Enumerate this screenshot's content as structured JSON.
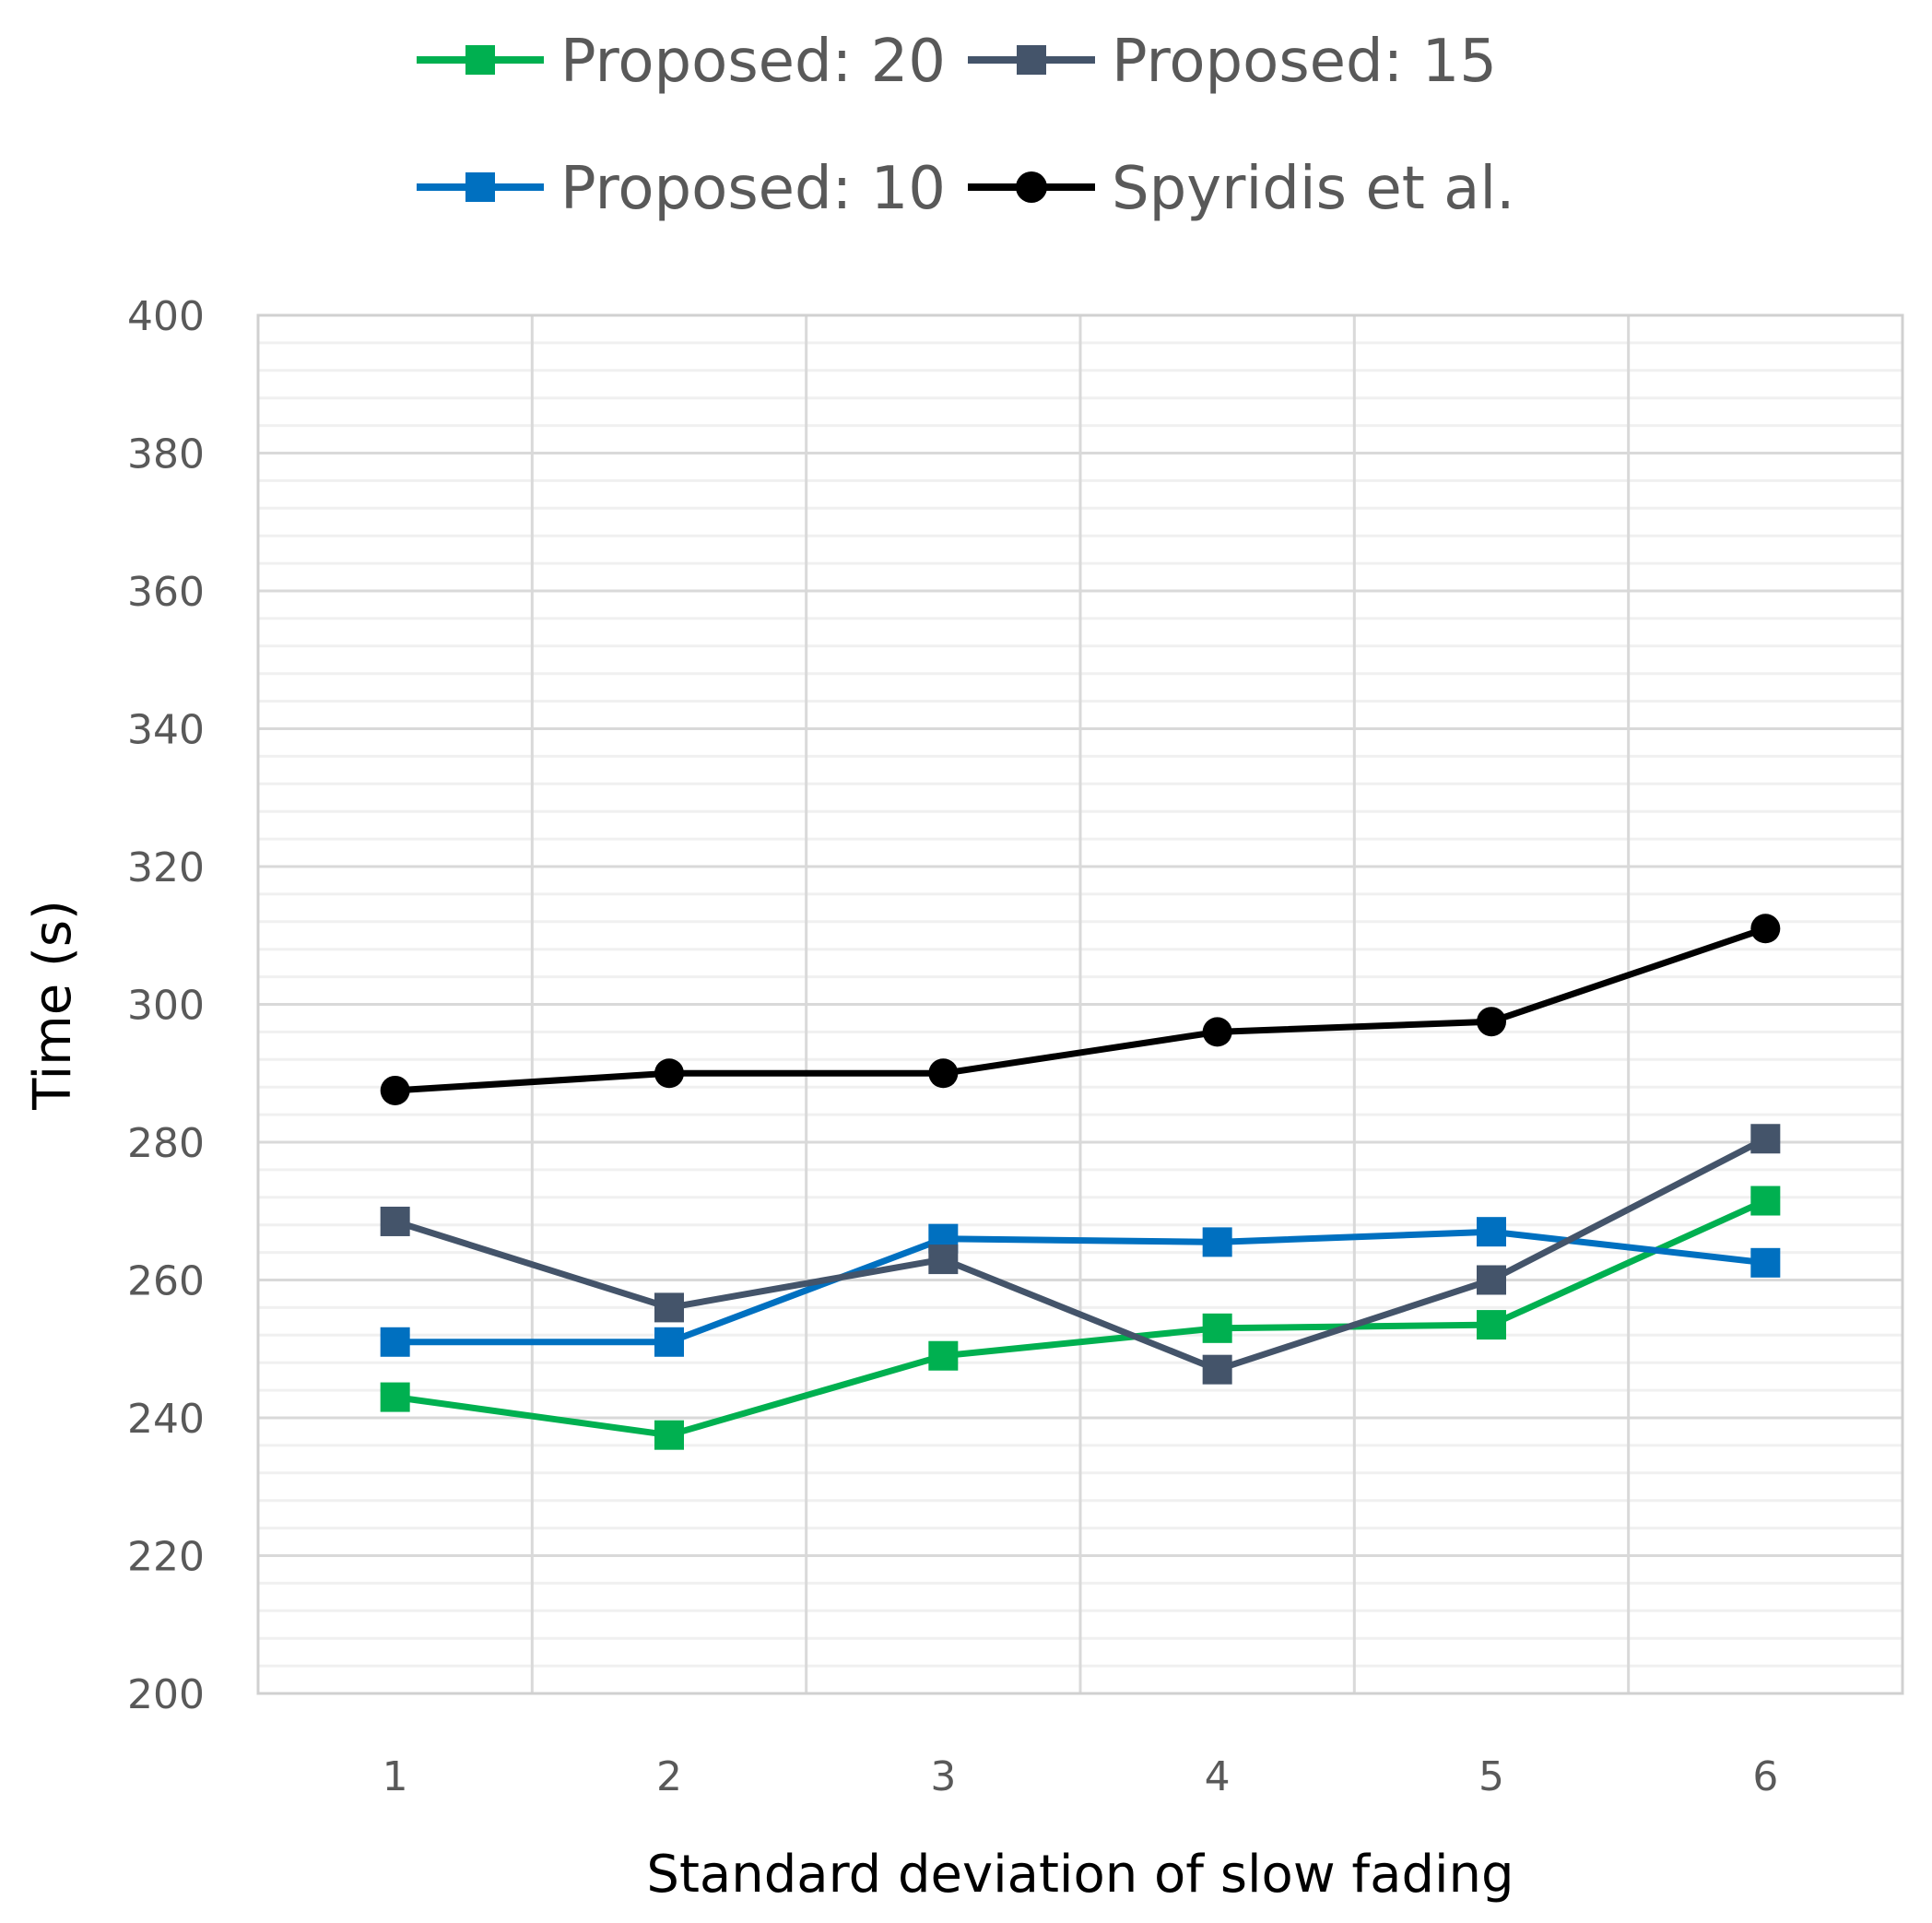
{
  "chart_data": {
    "type": "line",
    "title": "",
    "xlabel": "Standard deviation of slow fading",
    "ylabel": "Time (s)",
    "x": [
      1,
      2,
      3,
      4,
      5,
      6
    ],
    "x_tick_labels": [
      "1",
      "2",
      "3",
      "4",
      "5",
      "6"
    ],
    "ylim": [
      200,
      400
    ],
    "y_major_step": 20,
    "y_minor_step": 4,
    "y_tick_labels": [
      "200",
      "220",
      "240",
      "260",
      "280",
      "300",
      "320",
      "340",
      "360",
      "380",
      "400"
    ],
    "grid": true,
    "legend_position": "top",
    "series": [
      {
        "name": "Proposed: 20",
        "color": "#00b050",
        "marker": "square",
        "values": [
          243,
          237.5,
          249,
          253,
          253.5,
          271.5
        ]
      },
      {
        "name": "Proposed: 15",
        "color": "#44546a",
        "marker": "square",
        "values": [
          268.5,
          256,
          263,
          247,
          260,
          280.5
        ]
      },
      {
        "name": "Proposed: 10",
        "color": "#0070c0",
        "marker": "square",
        "values": [
          251,
          251,
          266,
          265.5,
          267,
          262.5
        ]
      },
      {
        "name": "Spyridis et al.",
        "color": "#000000",
        "marker": "circle",
        "values": [
          287.5,
          290,
          290,
          296,
          297.5,
          311
        ]
      }
    ]
  }
}
